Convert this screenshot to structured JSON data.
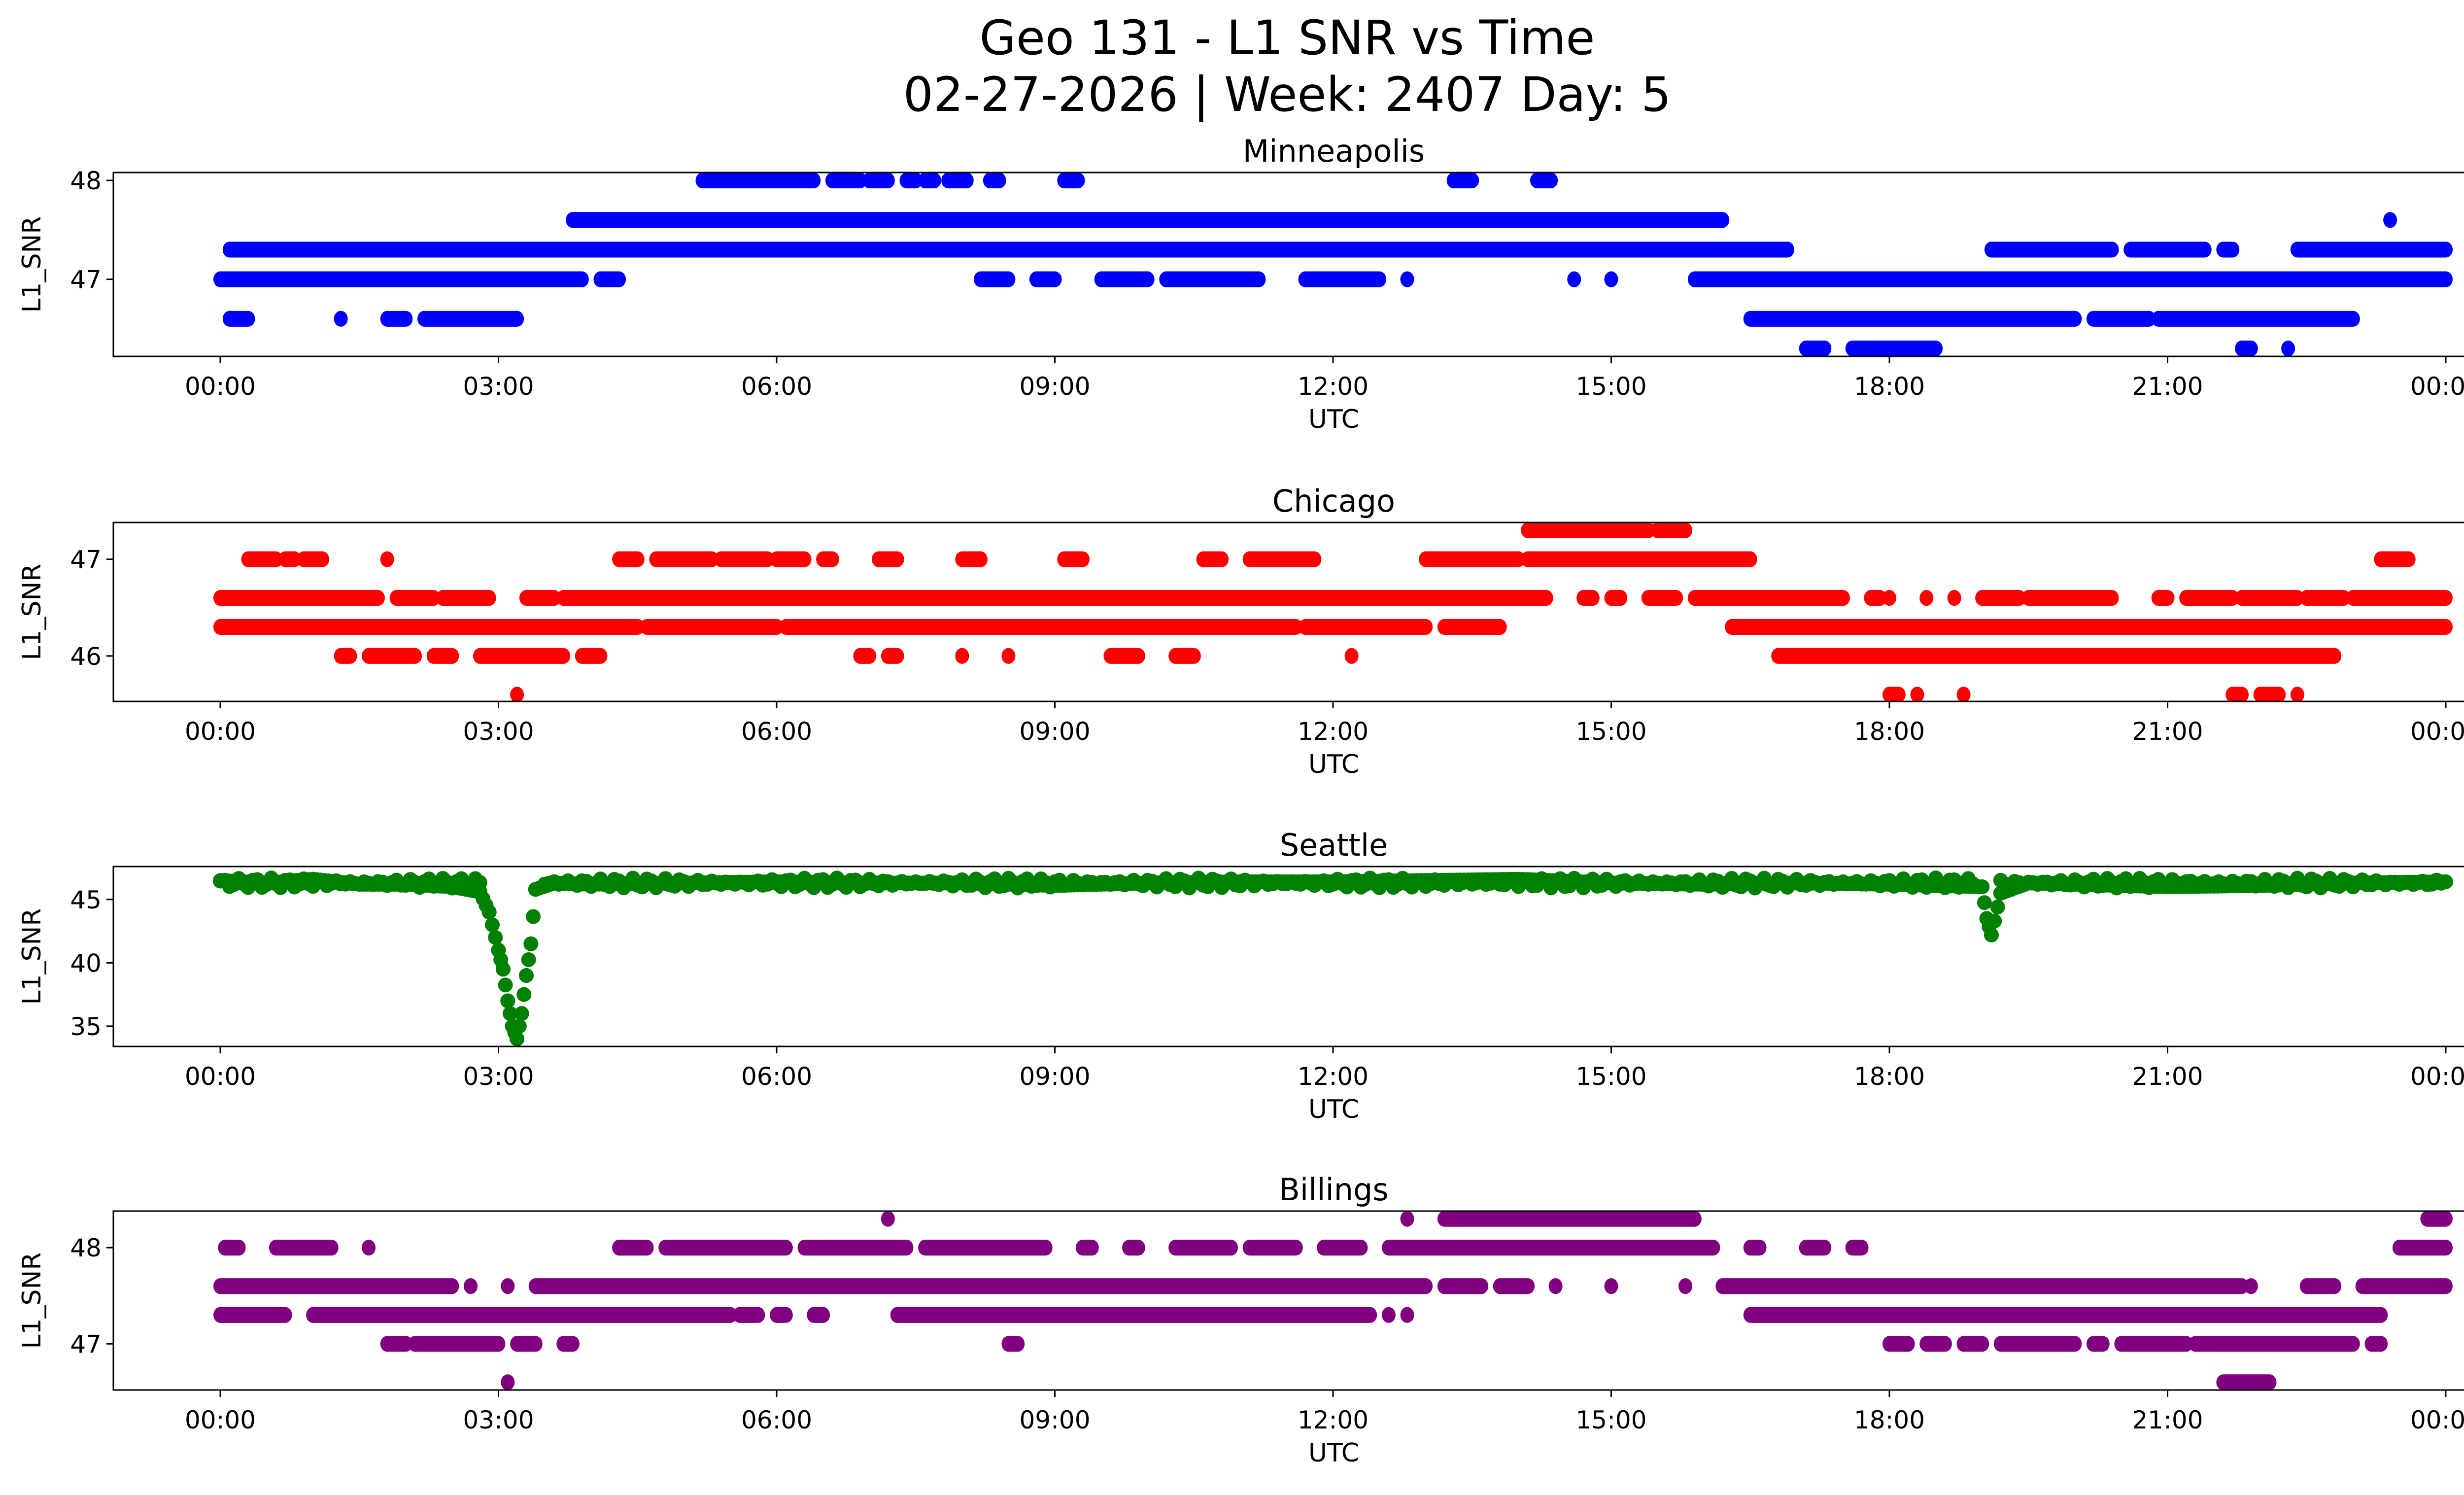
{
  "chart_data": {
    "type": "scatter",
    "title": "Geo 131 - L1 SNR vs Time",
    "subtitle": "02-27-2026 | Week: 2407 Day: 5",
    "x_ticks": [
      "00:00",
      "03:00",
      "06:00",
      "09:00",
      "12:00",
      "15:00",
      "18:00",
      "21:00",
      "00:00"
    ],
    "x_range_hours": [
      -1.2,
      25.2
    ],
    "panels": [
      {
        "name": "Minneapolis",
        "color": "#0000ff",
        "xlabel": "UTC",
        "ylabel": "L1_SNR",
        "ylim": [
          46.22,
          48.08
        ],
        "yticks": [
          47,
          48
        ],
        "runs": [
          {
            "y": 48.0,
            "x": [
              [
                5.2,
                6.4
              ],
              [
                6.6,
                6.9
              ],
              [
                7.0,
                7.2
              ],
              [
                7.4,
                7.5
              ],
              [
                7.6,
                7.7
              ],
              [
                7.85,
                8.05
              ],
              [
                8.3,
                8.4
              ],
              [
                9.1,
                9.25
              ],
              [
                13.3,
                13.5
              ],
              [
                14.2,
                14.35
              ]
            ]
          },
          {
            "y": 47.6,
            "x": [
              [
                3.8,
                16.2
              ],
              [
                23.4,
                23.4
              ]
            ]
          },
          {
            "y": 47.3,
            "x": [
              [
                0.1,
                16.9
              ],
              [
                19.1,
                20.4
              ],
              [
                20.6,
                21.4
              ],
              [
                21.6,
                21.7
              ],
              [
                22.4,
                24.0
              ]
            ]
          },
          {
            "y": 47.0,
            "x": [
              [
                0.0,
                3.9
              ],
              [
                4.1,
                4.3
              ],
              [
                8.2,
                8.5
              ],
              [
                8.8,
                9.0
              ],
              [
                9.5,
                10.0
              ],
              [
                10.2,
                11.2
              ],
              [
                11.7,
                12.5
              ],
              [
                12.8,
                12.8
              ],
              [
                14.6,
                14.6
              ],
              [
                15.0,
                15.0
              ],
              [
                15.9,
                24.0
              ]
            ]
          },
          {
            "y": 46.6,
            "x": [
              [
                0.1,
                0.3
              ],
              [
                1.3,
                1.3
              ],
              [
                1.8,
                2.0
              ],
              [
                2.2,
                3.2
              ],
              [
                16.5,
                20.0
              ],
              [
                20.2,
                20.8
              ],
              [
                20.9,
                23.0
              ]
            ]
          },
          {
            "y": 46.3,
            "x": [
              [
                17.1,
                17.3
              ],
              [
                17.6,
                18.5
              ],
              [
                21.8,
                21.9
              ],
              [
                22.3,
                22.3
              ]
            ]
          }
        ]
      },
      {
        "name": "Chicago",
        "color": "#ff0000",
        "xlabel": "UTC",
        "ylabel": "L1_SNR",
        "ylim": [
          45.53,
          47.38
        ],
        "yticks": [
          46,
          47
        ],
        "runs": [
          {
            "y": 47.3,
            "x": [
              [
                14.1,
                15.4
              ],
              [
                15.5,
                15.8
              ]
            ]
          },
          {
            "y": 47.0,
            "x": [
              [
                0.3,
                0.6
              ],
              [
                0.7,
                0.8
              ],
              [
                0.9,
                1.1
              ],
              [
                1.8,
                1.8
              ],
              [
                4.3,
                4.5
              ],
              [
                4.7,
                5.3
              ],
              [
                5.4,
                5.9
              ],
              [
                6.0,
                6.3
              ],
              [
                6.5,
                6.6
              ],
              [
                7.1,
                7.3
              ],
              [
                8.0,
                8.2
              ],
              [
                9.1,
                9.3
              ],
              [
                10.6,
                10.8
              ],
              [
                11.1,
                11.8
              ],
              [
                13.0,
                14.0
              ],
              [
                14.1,
                16.5
              ],
              [
                23.3,
                23.6
              ]
            ]
          },
          {
            "y": 46.6,
            "x": [
              [
                0.0,
                1.7
              ],
              [
                1.9,
                2.3
              ],
              [
                2.4,
                2.9
              ],
              [
                3.3,
                3.6
              ],
              [
                3.7,
                14.3
              ],
              [
                14.7,
                14.8
              ],
              [
                15.0,
                15.1
              ],
              [
                15.4,
                15.7
              ],
              [
                15.9,
                17.5
              ],
              [
                17.8,
                17.9
              ],
              [
                18.0,
                18.0
              ],
              [
                18.4,
                18.4
              ],
              [
                18.7,
                18.7
              ],
              [
                19.0,
                19.4
              ],
              [
                19.5,
                20.4
              ],
              [
                20.9,
                21.0
              ],
              [
                21.2,
                21.7
              ],
              [
                21.8,
                22.4
              ],
              [
                22.5,
                22.9
              ],
              [
                23.0,
                24.0
              ]
            ]
          },
          {
            "y": 46.3,
            "x": [
              [
                0.0,
                4.5
              ],
              [
                4.6,
                6.0
              ],
              [
                6.1,
                11.6
              ],
              [
                11.7,
                13.0
              ],
              [
                13.2,
                13.8
              ],
              [
                16.3,
                24.0
              ]
            ]
          },
          {
            "y": 46.0,
            "x": [
              [
                1.3,
                1.4
              ],
              [
                1.6,
                2.1
              ],
              [
                2.3,
                2.5
              ],
              [
                2.8,
                3.7
              ],
              [
                3.9,
                4.1
              ],
              [
                6.9,
                7.0
              ],
              [
                7.2,
                7.3
              ],
              [
                8.0,
                8.0
              ],
              [
                8.5,
                8.5
              ],
              [
                9.6,
                9.9
              ],
              [
                10.3,
                10.5
              ],
              [
                12.2,
                12.2
              ],
              [
                16.8,
                22.8
              ]
            ]
          },
          {
            "y": 45.6,
            "x": [
              [
                3.2,
                3.2
              ],
              [
                18.0,
                18.1
              ],
              [
                18.3,
                18.3
              ],
              [
                18.8,
                18.8
              ],
              [
                21.7,
                21.8
              ],
              [
                22.0,
                22.2
              ],
              [
                22.4,
                22.4
              ]
            ]
          }
        ]
      },
      {
        "name": "Seattle",
        "color": "#008000",
        "xlabel": "UTC",
        "ylabel": "L1_SNR",
        "ylim": [
          33.4,
          47.6
        ],
        "yticks": [
          35,
          40,
          45
        ],
        "series_points": [
          [
            0.0,
            46.5
          ],
          [
            0.5,
            46.3
          ],
          [
            1.0,
            46.6
          ],
          [
            1.5,
            46.2
          ],
          [
            2.0,
            46.2
          ],
          [
            2.5,
            46.0
          ],
          [
            2.8,
            45.6
          ],
          [
            2.9,
            44.0
          ],
          [
            3.0,
            41.0
          ],
          [
            3.05,
            39.5
          ],
          [
            3.1,
            37.0
          ],
          [
            3.15,
            35.0
          ],
          [
            3.2,
            34.0
          ],
          [
            3.25,
            36.0
          ],
          [
            3.3,
            39.0
          ],
          [
            3.35,
            41.5
          ],
          [
            3.4,
            45.8
          ],
          [
            3.6,
            46.3
          ],
          [
            4.0,
            46.2
          ],
          [
            5.0,
            46.3
          ],
          [
            6.0,
            46.4
          ],
          [
            7.0,
            46.3
          ],
          [
            8.0,
            46.3
          ],
          [
            9.0,
            46.1
          ],
          [
            10.0,
            46.3
          ],
          [
            11.0,
            46.4
          ],
          [
            12.0,
            46.4
          ],
          [
            13.0,
            46.5
          ],
          [
            14.0,
            46.6
          ],
          [
            15.0,
            46.3
          ],
          [
            16.0,
            46.2
          ],
          [
            17.0,
            46.3
          ],
          [
            18.0,
            46.2
          ],
          [
            19.0,
            46.0
          ],
          [
            19.05,
            43.5
          ],
          [
            19.1,
            42.2
          ],
          [
            19.2,
            45.5
          ],
          [
            19.5,
            46.3
          ],
          [
            20.0,
            46.2
          ],
          [
            21.0,
            46.0
          ],
          [
            22.0,
            46.1
          ],
          [
            23.0,
            46.3
          ],
          [
            24.0,
            46.4
          ]
        ]
      },
      {
        "name": "Billings",
        "color": "#800080",
        "xlabel": "UTC",
        "ylabel": "L1_SNR",
        "ylim": [
          46.52,
          48.38
        ],
        "yticks": [
          47,
          48
        ],
        "runs": [
          {
            "y": 48.3,
            "x": [
              [
                7.2,
                7.2
              ],
              [
                12.8,
                12.8
              ],
              [
                13.2,
                15.9
              ],
              [
                23.8,
                24.0
              ]
            ]
          },
          {
            "y": 48.0,
            "x": [
              [
                0.05,
                0.2
              ],
              [
                0.6,
                1.2
              ],
              [
                1.6,
                1.6
              ],
              [
                4.3,
                4.6
              ],
              [
                4.8,
                6.1
              ],
              [
                6.3,
                7.4
              ],
              [
                7.6,
                8.9
              ],
              [
                9.3,
                9.4
              ],
              [
                9.8,
                9.9
              ],
              [
                10.3,
                10.9
              ],
              [
                11.1,
                11.6
              ],
              [
                11.9,
                12.3
              ],
              [
                12.6,
                16.1
              ],
              [
                16.5,
                16.6
              ],
              [
                17.1,
                17.3
              ],
              [
                17.6,
                17.7
              ],
              [
                23.5,
                24.0
              ]
            ]
          },
          {
            "y": 47.6,
            "x": [
              [
                0.0,
                2.5
              ],
              [
                2.7,
                2.7
              ],
              [
                3.1,
                3.1
              ],
              [
                3.4,
                13.0
              ],
              [
                13.2,
                13.6
              ],
              [
                13.8,
                14.1
              ],
              [
                14.4,
                14.4
              ],
              [
                15.0,
                15.0
              ],
              [
                15.8,
                15.8
              ],
              [
                16.2,
                21.8
              ],
              [
                21.9,
                21.9
              ],
              [
                22.5,
                22.8
              ],
              [
                23.1,
                24.0
              ]
            ]
          },
          {
            "y": 47.3,
            "x": [
              [
                0.0,
                0.7
              ],
              [
                1.0,
                5.5
              ],
              [
                5.6,
                5.8
              ],
              [
                6.0,
                6.1
              ],
              [
                6.4,
                6.5
              ],
              [
                7.3,
                12.4
              ],
              [
                12.6,
                12.6
              ],
              [
                12.8,
                12.8
              ],
              [
                16.5,
                23.3
              ]
            ]
          },
          {
            "y": 47.0,
            "x": [
              [
                1.8,
                2.0
              ],
              [
                2.1,
                3.0
              ],
              [
                3.2,
                3.4
              ],
              [
                3.7,
                3.8
              ],
              [
                8.5,
                8.6
              ],
              [
                18.0,
                18.2
              ],
              [
                18.4,
                18.6
              ],
              [
                18.8,
                19.0
              ],
              [
                19.2,
                20.0
              ],
              [
                20.2,
                20.3
              ],
              [
                20.5,
                21.2
              ],
              [
                21.3,
                23.0
              ],
              [
                23.2,
                23.3
              ]
            ]
          },
          {
            "y": 46.6,
            "x": [
              [
                3.1,
                3.1
              ],
              [
                21.6,
                22.1
              ]
            ]
          }
        ]
      }
    ]
  }
}
